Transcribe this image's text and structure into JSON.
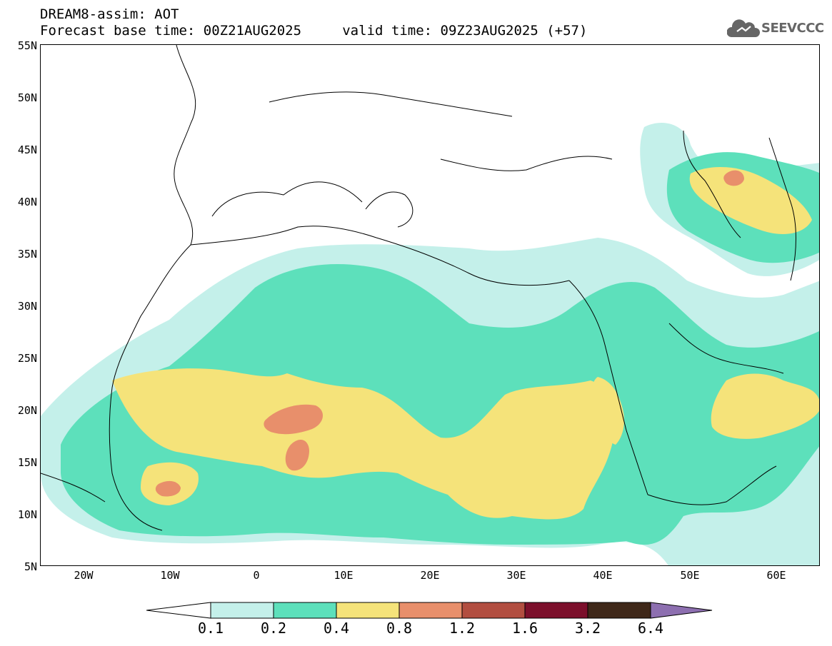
{
  "header": {
    "title_line1": "DREAM8-assim: AOT",
    "title_line2": "Forecast base time: 00Z21AUG2025     valid time: 09Z23AUG2025 (+57)",
    "logo_text": "SEEVCCC"
  },
  "map": {
    "lat_labels": [
      "55N",
      "50N",
      "45N",
      "40N",
      "35N",
      "30N",
      "25N",
      "20N",
      "15N",
      "10N",
      "5N"
    ],
    "lon_labels": [
      "20W",
      "10W",
      "0",
      "10E",
      "20E",
      "30E",
      "40E",
      "50E",
      "60E"
    ],
    "lon_range": [
      -25,
      65
    ],
    "lat_range": [
      5,
      55
    ]
  },
  "legend": {
    "levels": [
      "0.1",
      "0.2",
      "0.4",
      "0.8",
      "1.2",
      "1.6",
      "3.2",
      "6.4"
    ],
    "colors": [
      "#ffffff",
      "#c4f0ea",
      "#5de0bb",
      "#f5e37a",
      "#e88f6b",
      "#b24e40",
      "#7c0f2b",
      "#3f2819",
      "#8d6fb0"
    ]
  },
  "icons": {
    "logo": "cloud-logo-icon"
  }
}
